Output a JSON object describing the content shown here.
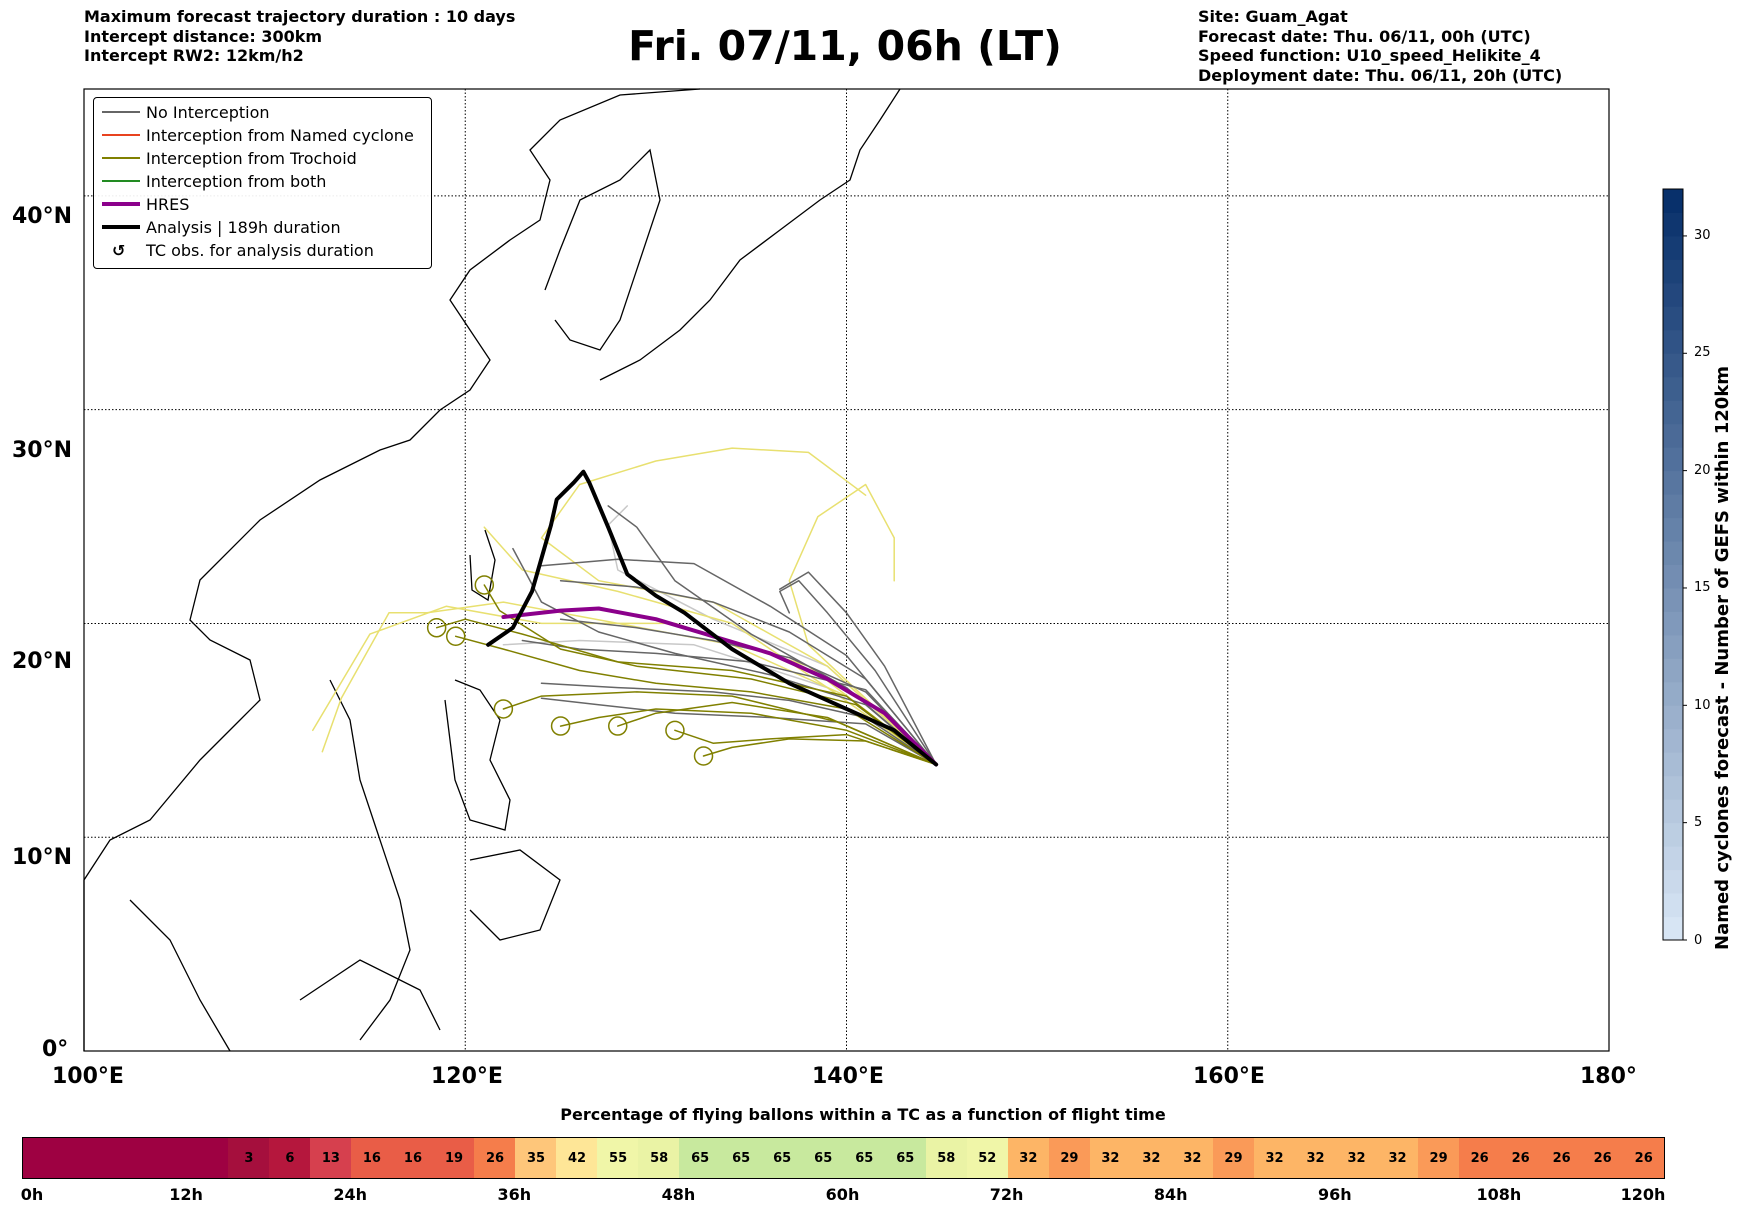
{
  "header": {
    "left_lines": [
      "Maximum forecast trajectory duration : 10 days",
      "Intercept distance: 300km",
      "Intercept RW2: 12km/h2"
    ],
    "title": "Fri. 07/11, 06h (LT)",
    "right_lines": [
      "Site: Guam_Agat",
      "Forecast date: Thu. 06/11, 00h (UTC)",
      "Speed function: U10_speed_Helikite_4",
      "Deployment date: Thu. 06/11, 20h (UTC)"
    ]
  },
  "legend": [
    {
      "label": "No Interception",
      "color": "#666666",
      "style": "thin"
    },
    {
      "label": "Interception from Named cyclone",
      "color": "#e8431f",
      "style": "thin"
    },
    {
      "label": "Interception from Trochoid",
      "color": "#808000",
      "style": "thin"
    },
    {
      "label": "Interception from both",
      "color": "#228b22",
      "style": "thin"
    },
    {
      "label": "HRES",
      "color": "#8b008b",
      "style": "thick"
    },
    {
      "label": "Analysis | 189h duration",
      "color": "#000000",
      "style": "thick"
    },
    {
      "label": "TC obs. for analysis duration",
      "color": "#000000",
      "style": "marker"
    }
  ],
  "map": {
    "lon_labels": [
      "100°E",
      "120°E",
      "140°E",
      "160°E",
      "180°"
    ],
    "lat_labels": [
      "40°N",
      "30°N",
      "20°N",
      "10°N",
      "0°"
    ],
    "lon_range": [
      100,
      180
    ],
    "lat_range": [
      0,
      45
    ],
    "site": {
      "name": "Guam_Agat",
      "lon": 144.7,
      "lat": 13.4
    },
    "hres_track": [
      [
        144.7,
        13.4
      ],
      [
        142,
        15.8
      ],
      [
        139,
        17.4
      ],
      [
        136,
        18.6
      ],
      [
        133,
        19.4
      ],
      [
        130,
        20.2
      ],
      [
        127,
        20.7
      ],
      [
        125,
        20.6
      ],
      [
        122,
        20.3
      ]
    ],
    "analysis_track": [
      [
        144.7,
        13.4
      ],
      [
        142.5,
        15
      ],
      [
        139.5,
        16.2
      ],
      [
        137,
        17.2
      ],
      [
        134,
        18.8
      ],
      [
        131.5,
        20.5
      ],
      [
        130,
        21.3
      ],
      [
        128.5,
        22.3
      ],
      [
        127.5,
        24.5
      ],
      [
        126.5,
        26.6
      ],
      [
        126.2,
        27.1
      ],
      [
        125.7,
        26.6
      ],
      [
        124.8,
        25.8
      ],
      [
        124.5,
        24.6
      ],
      [
        123.5,
        21.5
      ],
      [
        122.5,
        19.8
      ],
      [
        121.2,
        19
      ]
    ],
    "no_interception_tracks": [
      [
        [
          144.7,
          13.4
        ],
        [
          141,
          16.8
        ],
        [
          137,
          18.4
        ],
        [
          133,
          19.2
        ],
        [
          129,
          19.8
        ],
        [
          125,
          20.2
        ]
      ],
      [
        [
          144.7,
          13.4
        ],
        [
          141,
          17.4
        ],
        [
          137,
          19.6
        ],
        [
          133,
          21
        ],
        [
          129,
          21.7
        ],
        [
          125,
          22
        ]
      ],
      [
        [
          144.7,
          13.4
        ],
        [
          141,
          15.6
        ],
        [
          137,
          16.4
        ],
        [
          133,
          16.8
        ],
        [
          128,
          17
        ],
        [
          124,
          17.2
        ]
      ],
      [
        [
          144.7,
          13.4
        ],
        [
          141,
          16.2
        ],
        [
          136,
          17.6
        ],
        [
          131,
          18.6
        ],
        [
          127,
          19.6
        ],
        [
          124,
          21
        ],
        [
          122.5,
          23.5
        ]
      ],
      [
        [
          144.7,
          13.4
        ],
        [
          141.5,
          17.8
        ],
        [
          139,
          20.5
        ],
        [
          137.5,
          22
        ],
        [
          136.5,
          21.5
        ],
        [
          137,
          20.5
        ]
      ],
      [
        [
          144.7,
          13.4
        ],
        [
          140,
          17
        ],
        [
          135,
          19.5
        ],
        [
          131,
          22
        ],
        [
          129,
          24.5
        ],
        [
          127.5,
          25.5
        ]
      ],
      [
        [
          144.7,
          13.4
        ],
        [
          141,
          15.3
        ],
        [
          136,
          15.6
        ],
        [
          131,
          15.8
        ],
        [
          127,
          16.2
        ],
        [
          124,
          16.5
        ]
      ],
      [
        [
          144.7,
          13.4
        ],
        [
          142,
          18
        ],
        [
          140,
          20.5
        ],
        [
          138,
          22.4
        ],
        [
          136.5,
          21.6
        ]
      ],
      [
        [
          144.7,
          13.4
        ],
        [
          141,
          16.9
        ],
        [
          135,
          18.2
        ],
        [
          130,
          18.6
        ],
        [
          126,
          18.8
        ],
        [
          123,
          19.2
        ]
      ],
      [
        [
          144.7,
          13.4
        ],
        [
          140,
          18.5
        ],
        [
          136,
          20.8
        ],
        [
          132,
          22.8
        ],
        [
          128,
          23
        ],
        [
          124,
          22.7
        ]
      ]
    ],
    "trochoid_tracks": [
      [
        [
          144.7,
          13.4
        ],
        [
          141,
          14.5
        ],
        [
          137,
          14.6
        ],
        [
          134,
          14.2
        ],
        [
          132.5,
          13.8
        ]
      ],
      [
        [
          144.7,
          13.4
        ],
        [
          140,
          15
        ],
        [
          135,
          15.8
        ],
        [
          130,
          16
        ],
        [
          127,
          15.6
        ],
        [
          125,
          15.2
        ]
      ],
      [
        [
          144.7,
          13.4
        ],
        [
          140,
          16
        ],
        [
          135,
          16.8
        ],
        [
          130,
          17.2
        ],
        [
          126,
          17.8
        ],
        [
          122,
          18.8
        ],
        [
          119.5,
          19.4
        ]
      ],
      [
        [
          144.7,
          13.4
        ],
        [
          139.5,
          15.4
        ],
        [
          134,
          16.6
        ],
        [
          129,
          16.8
        ],
        [
          124,
          16.6
        ],
        [
          122,
          16
        ]
      ],
      [
        [
          144.7,
          13.4
        ],
        [
          140,
          16.6
        ],
        [
          134,
          17.8
        ],
        [
          128,
          18.2
        ],
        [
          123,
          19.5
        ],
        [
          120,
          20.2
        ],
        [
          118.5,
          19.8
        ]
      ],
      [
        [
          144.7,
          13.4
        ],
        [
          140,
          14.8
        ],
        [
          136,
          14.6
        ],
        [
          133,
          14.4
        ],
        [
          131,
          15
        ]
      ],
      [
        [
          144.7,
          13.4
        ],
        [
          140.5,
          16.2
        ],
        [
          135,
          17.4
        ],
        [
          129,
          18
        ],
        [
          125,
          18.8
        ],
        [
          121.8,
          20.6
        ],
        [
          121,
          21.8
        ]
      ],
      [
        [
          144.7,
          13.4
        ],
        [
          139,
          15.6
        ],
        [
          134,
          16.3
        ],
        [
          130,
          15.8
        ],
        [
          128,
          15.2
        ]
      ]
    ],
    "trochoid_light_tracks": [
      [
        [
          144.7,
          13.4
        ],
        [
          140,
          16.6
        ],
        [
          134,
          19
        ],
        [
          128,
          20
        ],
        [
          122,
          21
        ],
        [
          118,
          20.5
        ],
        [
          116,
          20.5
        ],
        [
          113.5,
          16.5
        ],
        [
          112.5,
          14
        ]
      ],
      [
        [
          144.7,
          13.4
        ],
        [
          139,
          17
        ],
        [
          134,
          20
        ],
        [
          128,
          21.5
        ],
        [
          123,
          22.5
        ],
        [
          121,
          24.5
        ]
      ],
      [
        [
          144.7,
          13.4
        ],
        [
          138,
          19
        ],
        [
          137,
          22
        ],
        [
          138.5,
          25
        ],
        [
          141,
          26.5
        ],
        [
          142.5,
          24
        ],
        [
          142.5,
          22
        ]
      ],
      [
        [
          144.7,
          13.4
        ],
        [
          139,
          18
        ],
        [
          133,
          21
        ],
        [
          127,
          22
        ],
        [
          124,
          24
        ],
        [
          126,
          26.5
        ],
        [
          130,
          27.6
        ],
        [
          134,
          28.2
        ],
        [
          138,
          28
        ],
        [
          141,
          26
        ]
      ],
      [
        [
          144.7,
          13.4
        ],
        [
          138,
          18
        ],
        [
          131,
          20
        ],
        [
          124,
          20
        ],
        [
          119,
          20.8
        ],
        [
          115,
          19.5
        ],
        [
          112,
          15
        ]
      ]
    ],
    "gray_light_tracks": [
      [
        [
          144.7,
          13.4
        ],
        [
          139,
          17
        ],
        [
          132,
          19
        ],
        [
          126,
          19.2
        ],
        [
          122,
          19
        ]
      ],
      [
        [
          144.7,
          13.4
        ],
        [
          139,
          18
        ],
        [
          133,
          20.2
        ],
        [
          128,
          22.5
        ],
        [
          127.5,
          24.6
        ],
        [
          128.5,
          25.5
        ]
      ]
    ]
  },
  "colorbar": {
    "label": "Named cyclones forecast - Number of GEFS within 120km",
    "min": 0,
    "max": 32,
    "ticks": [
      "0",
      "5",
      "10",
      "15",
      "20",
      "25",
      "30"
    ],
    "low_color": "#d7e5f4",
    "high_color": "#08306b"
  },
  "percentage_bar": {
    "title": "Percentage of flying ballons within a TC as a function of flight time",
    "values_start_hour": 15,
    "step_hours": 3,
    "values": [
      "3",
      "6",
      "13",
      "16",
      "16",
      "19",
      "26",
      "35",
      "42",
      "55",
      "58",
      "65",
      "65",
      "65",
      "65",
      "65",
      "65",
      "58",
      "52",
      "32",
      "29",
      "32",
      "32",
      "32",
      "29",
      "32",
      "32",
      "32",
      "32",
      "29",
      "26",
      "26",
      "26",
      "26",
      "26"
    ],
    "tick_labels": [
      "0h",
      "12h",
      "24h",
      "36h",
      "48h",
      "60h",
      "72h",
      "84h",
      "96h",
      "108h",
      "120h"
    ]
  }
}
